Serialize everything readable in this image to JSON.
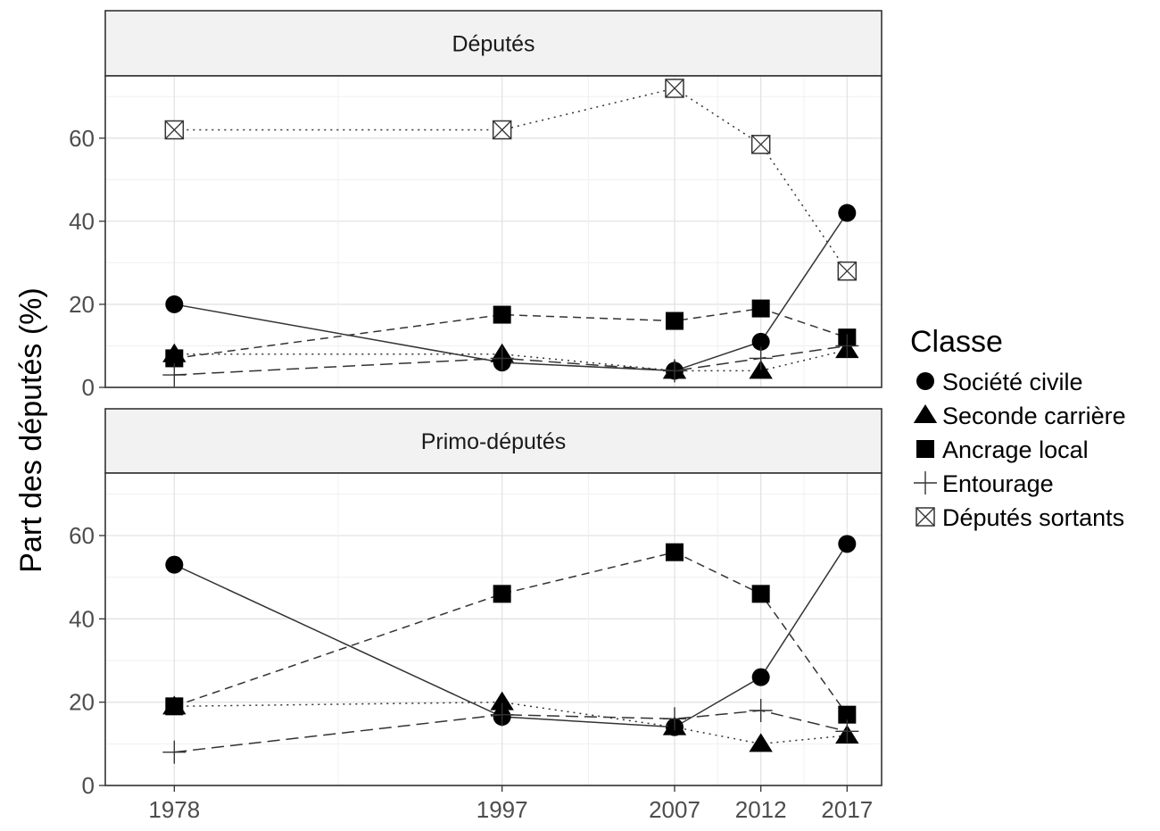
{
  "chart_data": {
    "type": "line",
    "ylabel": "Part des députés (%)",
    "xlabel": "",
    "x": [
      1978,
      1997,
      2007,
      2012,
      2017
    ],
    "x_ticks": [
      "1978",
      "1997",
      "2007",
      "2012",
      "2017"
    ],
    "y_ticks": [
      "0",
      "20",
      "40",
      "60"
    ],
    "xlim": [
      1974,
      2019
    ],
    "ylim": [
      0,
      75
    ],
    "grid": true,
    "legend": {
      "title": "Classe",
      "placement": "right",
      "entries": [
        "Société civile",
        "Seconde carrière",
        "Ancrage local",
        "Entourage",
        "Députés sortants"
      ]
    },
    "panels": [
      {
        "title": "Députés",
        "series": [
          {
            "name": "Société civile",
            "marker": "circle",
            "line": "solid",
            "values": [
              20,
              6,
              4,
              11,
              42
            ]
          },
          {
            "name": "Seconde carrière",
            "marker": "triangle",
            "line": "dotted",
            "values": [
              8,
              8,
              4,
              4,
              9
            ]
          },
          {
            "name": "Ancrage local",
            "marker": "square",
            "line": "dashed",
            "values": [
              7,
              17.5,
              16,
              19,
              12
            ]
          },
          {
            "name": "Entourage",
            "marker": "plus",
            "line": "longdash",
            "values": [
              3,
              7,
              4,
              7,
              10
            ]
          },
          {
            "name": "Députés sortants",
            "marker": "boxx",
            "line": "dotted",
            "values": [
              62,
              62,
              72,
              58.5,
              28
            ]
          }
        ]
      },
      {
        "title": "Primo-députés",
        "series": [
          {
            "name": "Société civile",
            "marker": "circle",
            "line": "solid",
            "values": [
              53,
              16.5,
              14,
              26,
              58
            ]
          },
          {
            "name": "Seconde carrière",
            "marker": "triangle",
            "line": "dotted",
            "values": [
              19,
              20,
              14,
              10,
              12
            ]
          },
          {
            "name": "Ancrage local",
            "marker": "square",
            "line": "dashed",
            "values": [
              19,
              46,
              56,
              46,
              17
            ]
          },
          {
            "name": "Entourage",
            "marker": "plus",
            "line": "longdash",
            "values": [
              8,
              17,
              16,
              18,
              13
            ]
          }
        ]
      }
    ]
  }
}
